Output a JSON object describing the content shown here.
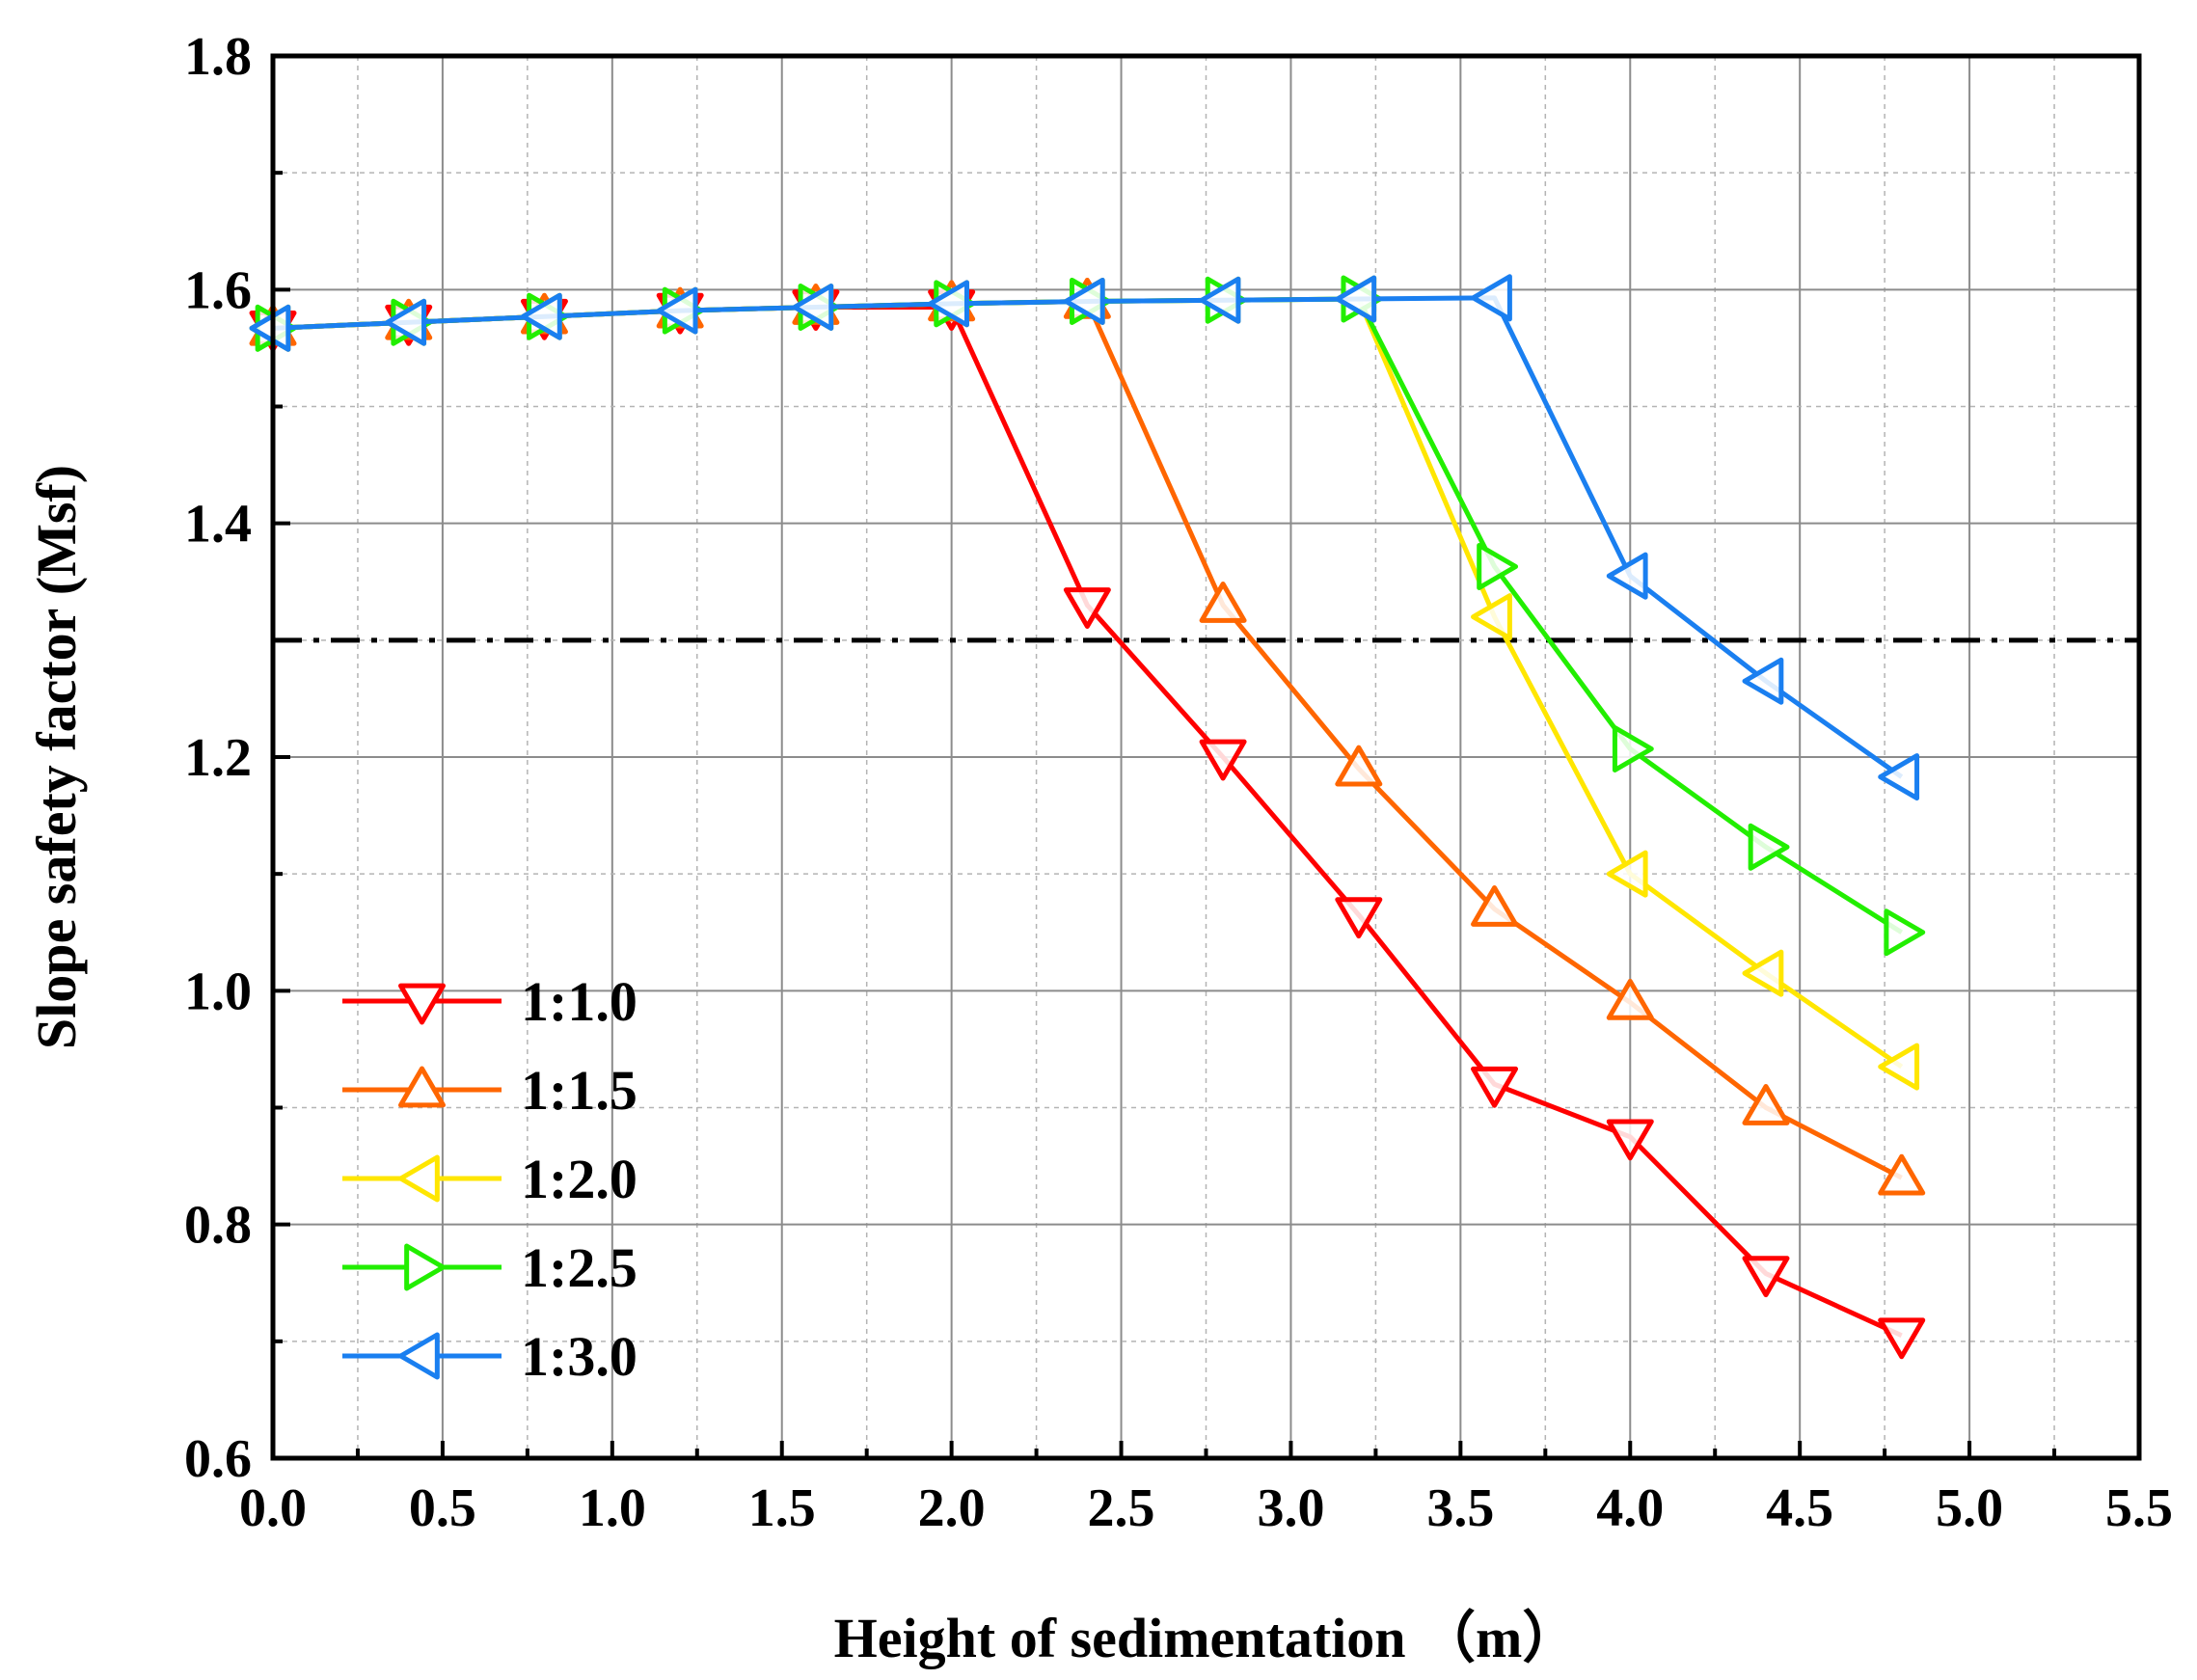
{
  "chart_data": {
    "type": "line",
    "title": "",
    "xlabel": "Height of sedimentation （m）",
    "ylabel": "Slope safety factor (Msf)",
    "xlim": [
      0,
      5.5
    ],
    "ylim": [
      0.6,
      1.8
    ],
    "xticks": [
      "0.0",
      "0.5",
      "1.0",
      "1.5",
      "2.0",
      "2.5",
      "3.0",
      "3.5",
      "4.0",
      "4.5",
      "5.0",
      "5.5"
    ],
    "yticks": [
      "0.6",
      "0.8",
      "1.0",
      "1.2",
      "1.4",
      "1.6",
      "1.8"
    ],
    "grid": true,
    "legend_position": "lower-left",
    "reference_line": {
      "y": 1.3,
      "style": "dash-dot",
      "color": "#000000"
    },
    "series": [
      {
        "name": "1:1.0",
        "color": "#ff0000",
        "marker": "triangle-down",
        "x": [
          0,
          0.4,
          0.8,
          1.2,
          1.6,
          2.0,
          2.4,
          2.8,
          3.2,
          3.6,
          4.0,
          4.4,
          4.8
        ],
        "y": [
          1.567,
          1.572,
          1.577,
          1.582,
          1.585,
          1.585,
          1.33,
          1.2,
          1.065,
          0.92,
          0.875,
          0.758,
          0.705
        ]
      },
      {
        "name": "1:1.5",
        "color": "#ff6600",
        "marker": "triangle-up",
        "x": [
          0,
          0.4,
          0.8,
          1.2,
          1.6,
          2.0,
          2.4,
          2.8,
          3.2,
          3.6,
          4.0,
          4.4,
          4.8
        ],
        "y": [
          1.567,
          1.572,
          1.577,
          1.582,
          1.585,
          1.588,
          1.59,
          1.33,
          1.19,
          1.07,
          0.99,
          0.9,
          0.84
        ]
      },
      {
        "name": "1:2.0",
        "color": "#ffe600",
        "marker": "triangle-left",
        "x": [
          0,
          0.4,
          0.8,
          1.2,
          1.6,
          2.0,
          2.4,
          2.8,
          3.2,
          3.6,
          4.0,
          4.4,
          4.8
        ],
        "y": [
          1.567,
          1.572,
          1.577,
          1.582,
          1.585,
          1.588,
          1.59,
          1.591,
          1.592,
          1.32,
          1.1,
          1.015,
          0.935
        ]
      },
      {
        "name": "1:2.5",
        "color": "#22ee00",
        "marker": "triangle-right",
        "x": [
          0,
          0.4,
          0.8,
          1.2,
          1.6,
          2.0,
          2.4,
          2.8,
          3.2,
          3.6,
          4.0,
          4.4,
          4.8
        ],
        "y": [
          1.567,
          1.572,
          1.577,
          1.582,
          1.585,
          1.588,
          1.59,
          1.591,
          1.592,
          1.363,
          1.207,
          1.123,
          1.05
        ]
      },
      {
        "name": "1:3.0",
        "color": "#1a7ff0",
        "marker": "triangle-left",
        "x": [
          0,
          0.4,
          0.8,
          1.2,
          1.6,
          2.0,
          2.4,
          2.8,
          3.2,
          3.6,
          4.0,
          4.4,
          4.8
        ],
        "y": [
          1.567,
          1.572,
          1.577,
          1.582,
          1.585,
          1.588,
          1.59,
          1.591,
          1.592,
          1.593,
          1.355,
          1.265,
          1.183
        ]
      }
    ]
  }
}
